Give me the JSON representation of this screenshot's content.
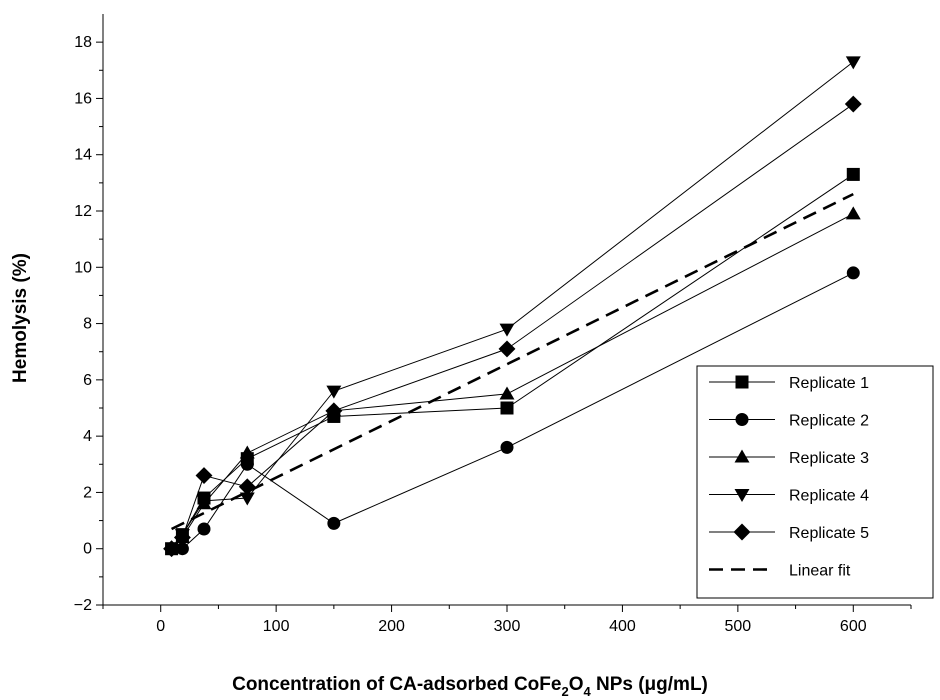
{
  "chart_data": {
    "type": "line",
    "xlabel": "Concentration of CA-adsorbed CoFe₂O₄ NPs (μg/mL)",
    "xlabel_parts": {
      "pre": "Concentration of CA-adsorbed CoFe",
      "sub1": "2",
      "mid": "O",
      "sub2": "4",
      "post": " NPs (μg/mL)"
    },
    "ylabel": "Hemolysis (%)",
    "xlim": [
      -50,
      650
    ],
    "ylim": [
      -2,
      19
    ],
    "xticks": [
      0,
      100,
      200,
      300,
      400,
      500,
      600
    ],
    "yticks": [
      -2,
      0,
      2,
      4,
      6,
      8,
      10,
      12,
      14,
      16,
      18
    ],
    "ytick_labels": [
      "−2",
      "0",
      "2",
      "4",
      "6",
      "8",
      "10",
      "12",
      "14",
      "16",
      "18"
    ],
    "legend_position": "lower-right",
    "grid": false,
    "series": [
      {
        "name": "Replicate 1",
        "marker": "square",
        "x": [
          9.4,
          18.8,
          37.5,
          75,
          150,
          300,
          600
        ],
        "y": [
          0.0,
          0.5,
          1.8,
          3.2,
          4.7,
          5.0,
          13.3
        ]
      },
      {
        "name": "Replicate 2",
        "marker": "circle",
        "x": [
          18.8,
          37.5,
          75,
          150,
          300,
          600
        ],
        "y": [
          0.0,
          0.7,
          3.0,
          0.9,
          3.6,
          9.8
        ]
      },
      {
        "name": "Replicate 3",
        "marker": "triangle-up",
        "x": [
          18.8,
          37.5,
          75,
          150,
          300,
          600
        ],
        "y": [
          0.4,
          1.6,
          3.4,
          4.9,
          5.5,
          11.9
        ]
      },
      {
        "name": "Replicate 4",
        "marker": "triangle-down",
        "x": [
          18.8,
          37.5,
          75,
          150,
          300,
          600
        ],
        "y": [
          0.5,
          1.7,
          1.8,
          5.6,
          7.8,
          17.3
        ]
      },
      {
        "name": "Replicate 5",
        "marker": "diamond",
        "x": [
          9.4,
          18.8,
          37.5,
          75,
          150,
          300,
          600
        ],
        "y": [
          0.0,
          0.4,
          2.6,
          2.2,
          4.9,
          7.1,
          15.8
        ]
      }
    ],
    "fit": {
      "name": "Linear fit",
      "x": [
        9.4,
        600
      ],
      "y": [
        0.7,
        12.6
      ]
    }
  }
}
